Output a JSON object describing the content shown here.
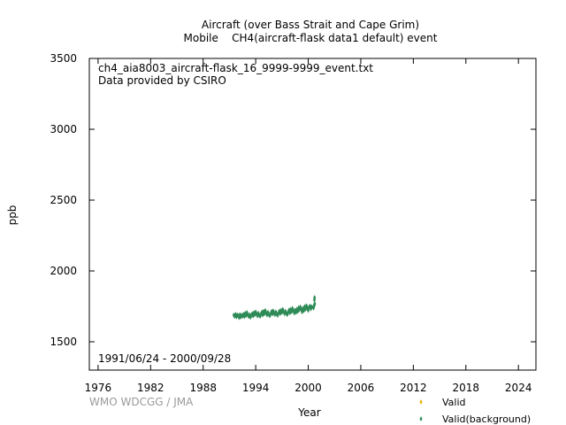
{
  "chart_data": {
    "type": "scatter",
    "title": "Aircraft (over Bass Strait and Cape Grim)",
    "subtitle": "Mobile    CH4(aircraft-flask data1 default) event",
    "xlabel": "Year",
    "ylabel": "ppb",
    "xlim": [
      1975,
      2026
    ],
    "ylim": [
      1300,
      3500
    ],
    "x_ticks": [
      "1976",
      "1982",
      "1988",
      "1994",
      "2000",
      "2006",
      "2012",
      "2018",
      "2024"
    ],
    "y_ticks": [
      "1500",
      "2000",
      "2500",
      "3000",
      "3500"
    ],
    "annotations": {
      "file": "ch4_aia8003_aircraft-flask_16_9999-9999_event.txt",
      "provider": "Data provided by CSIRO",
      "period": "1991/06/24 - 2000/09/28",
      "credit": "WMO WDCGG / JMA"
    },
    "legend_placement": "bottom-right",
    "grid": false,
    "series": [
      {
        "name": "Valid",
        "color": "#e6b400",
        "marker": "diamond",
        "points": []
      },
      {
        "name": "Valid(background)",
        "color": "#2e8b57",
        "marker": "diamond",
        "points": [
          [
            1991.5,
            1688
          ],
          [
            1991.6,
            1680
          ],
          [
            1991.7,
            1693
          ],
          [
            1991.8,
            1676
          ],
          [
            1991.9,
            1689
          ],
          [
            1992.0,
            1684
          ],
          [
            1992.1,
            1671
          ],
          [
            1992.2,
            1691
          ],
          [
            1992.3,
            1675
          ],
          [
            1992.4,
            1686
          ],
          [
            1992.5,
            1681
          ],
          [
            1992.6,
            1694
          ],
          [
            1992.7,
            1678
          ],
          [
            1992.8,
            1700
          ],
          [
            1992.9,
            1686
          ],
          [
            1993.0,
            1706
          ],
          [
            1993.1,
            1689
          ],
          [
            1993.2,
            1679
          ],
          [
            1993.3,
            1691
          ],
          [
            1993.4,
            1674
          ],
          [
            1993.5,
            1686
          ],
          [
            1993.6,
            1699
          ],
          [
            1993.7,
            1683
          ],
          [
            1993.8,
            1705
          ],
          [
            1993.9,
            1692
          ],
          [
            1994.0,
            1710
          ],
          [
            1994.1,
            1697
          ],
          [
            1994.2,
            1683
          ],
          [
            1994.3,
            1701
          ],
          [
            1994.4,
            1688
          ],
          [
            1994.5,
            1680
          ],
          [
            1994.6,
            1695
          ],
          [
            1994.7,
            1709
          ],
          [
            1994.8,
            1690
          ],
          [
            1994.9,
            1714
          ],
          [
            1995.0,
            1698
          ],
          [
            1995.1,
            1720
          ],
          [
            1995.2,
            1703
          ],
          [
            1995.3,
            1690
          ],
          [
            1995.4,
            1708
          ],
          [
            1995.5,
            1694
          ],
          [
            1995.6,
            1684
          ],
          [
            1995.7,
            1699
          ],
          [
            1995.8,
            1713
          ],
          [
            1995.9,
            1696
          ],
          [
            1996.0,
            1718
          ],
          [
            1996.1,
            1704
          ],
          [
            1996.2,
            1692
          ],
          [
            1996.3,
            1710
          ],
          [
            1996.4,
            1697
          ],
          [
            1996.5,
            1687
          ],
          [
            1996.6,
            1702
          ],
          [
            1996.7,
            1716
          ],
          [
            1996.8,
            1700
          ],
          [
            1996.9,
            1722
          ],
          [
            1997.0,
            1708
          ],
          [
            1997.1,
            1728
          ],
          [
            1997.2,
            1712
          ],
          [
            1997.3,
            1698
          ],
          [
            1997.4,
            1715
          ],
          [
            1997.5,
            1701
          ],
          [
            1997.6,
            1692
          ],
          [
            1997.7,
            1707
          ],
          [
            1997.8,
            1723
          ],
          [
            1997.9,
            1705
          ],
          [
            1998.0,
            1728
          ],
          [
            1998.1,
            1713
          ],
          [
            1998.2,
            1735
          ],
          [
            1998.3,
            1720
          ],
          [
            1998.4,
            1704
          ],
          [
            1998.5,
            1722
          ],
          [
            1998.6,
            1708
          ],
          [
            1998.7,
            1730
          ],
          [
            1998.8,
            1715
          ],
          [
            1998.9,
            1740
          ],
          [
            1999.0,
            1726
          ],
          [
            1999.1,
            1745
          ],
          [
            1999.2,
            1730
          ],
          [
            1999.3,
            1712
          ],
          [
            1999.4,
            1735
          ],
          [
            1999.5,
            1720
          ],
          [
            1999.6,
            1748
          ],
          [
            1999.7,
            1731
          ],
          [
            1999.8,
            1754
          ],
          [
            1999.9,
            1738
          ],
          [
            2000.0,
            1722
          ],
          [
            2000.1,
            1744
          ],
          [
            2000.2,
            1752
          ],
          [
            2000.3,
            1733
          ],
          [
            2000.4,
            1747
          ],
          [
            2000.6,
            1738
          ],
          [
            2000.65,
            1752
          ],
          [
            2000.7,
            1760
          ],
          [
            2000.7,
            1795
          ],
          [
            2000.72,
            1812
          ],
          [
            2000.74,
            1768
          ]
        ]
      }
    ]
  }
}
